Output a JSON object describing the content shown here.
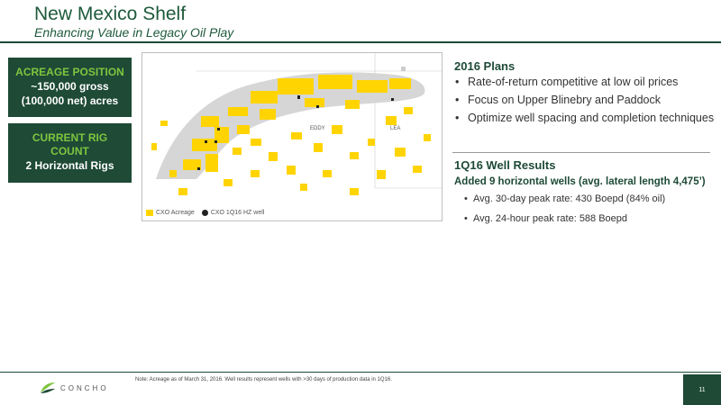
{
  "header": {
    "title": "New Mexico Shelf",
    "subtitle": "Enhancing Value in Legacy Oil Play"
  },
  "stats": [
    {
      "label": "ACREAGE POSITION",
      "value_line1": "~150,000 gross",
      "value_line2": "(100,000 net) acres"
    },
    {
      "label_line1": "CURRENT RIG",
      "label_line2": "COUNT",
      "value_line1": "2 Horizontal Rigs"
    }
  ],
  "map": {
    "county_labels": [
      "EDDY",
      "LEA"
    ],
    "legend": {
      "acreage": "CXO Acreage",
      "wells": "CXO 1Q16 HZ well"
    },
    "colors": {
      "acreage": "#ffd400",
      "trend": "#d6d6d6",
      "well": "#222222"
    }
  },
  "plans": {
    "heading": "2016 Plans",
    "items": [
      "Rate-of-return competitive at low oil prices",
      "Focus on Upper Blinebry and Paddock",
      "Optimize well spacing and completion techniques"
    ]
  },
  "results": {
    "heading": "1Q16 Well Results",
    "subheading": "Added 9 horizontal wells (avg. lateral length 4,475’)",
    "items": [
      "Avg. 30-day peak rate: 430 Boepd (84% oil)",
      "Avg. 24-hour peak rate: 588 Boepd"
    ]
  },
  "footer": {
    "note": "Note: Acreage as of March 31, 2016.  Well results represent wells with >30 days of production data in 1Q16.",
    "logo_text": "CONCHO",
    "page_number": "11"
  },
  "colors": {
    "brand_dark": "#1e4a36",
    "brand_green": "#7ec53f"
  }
}
